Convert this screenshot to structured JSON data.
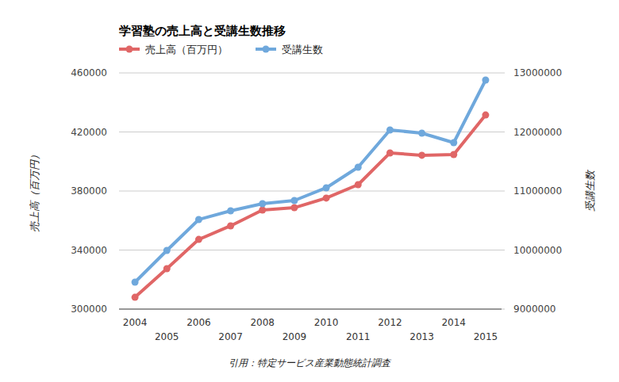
{
  "chart_data": {
    "type": "line",
    "title": "学習塾の売上高と受講生数推移",
    "y_label": "売上高（百万円）",
    "y2_label": "受講生数",
    "source": "引用：特定サービス産業動態統計調査",
    "categories": [
      "2004",
      "2005",
      "2006",
      "2007",
      "2008",
      "2009",
      "2010",
      "2011",
      "2012",
      "2013",
      "2014",
      "2015"
    ],
    "series": [
      {
        "name": "売上高（百万円）",
        "color": "#e06666",
        "marker": "circle",
        "line_style": "solid",
        "values": [
          308000,
          327400,
          347200,
          356400,
          367100,
          368700,
          375200,
          384300,
          405800,
          404200,
          404700,
          431500
        ]
      },
      {
        "name": "受講生数",
        "color": "#6fa8dc",
        "marker": "circle",
        "line_style": "solid",
        "axis": "y2",
        "values": [
          9456000,
          9993000,
          10517000,
          10664000,
          10785000,
          10839000,
          11054000,
          11403000,
          12034000,
          11980000,
          11819000,
          12879000
        ]
      }
    ],
    "ylim": [
      300000,
      460000
    ],
    "yticks": [
      300000,
      340000,
      380000,
      420000,
      460000
    ],
    "y2lim": [
      9000000,
      13000000
    ],
    "y2ticks": [
      9000000,
      10000000,
      11000000,
      12000000,
      13000000
    ],
    "grid": true,
    "legend": "top-left"
  }
}
